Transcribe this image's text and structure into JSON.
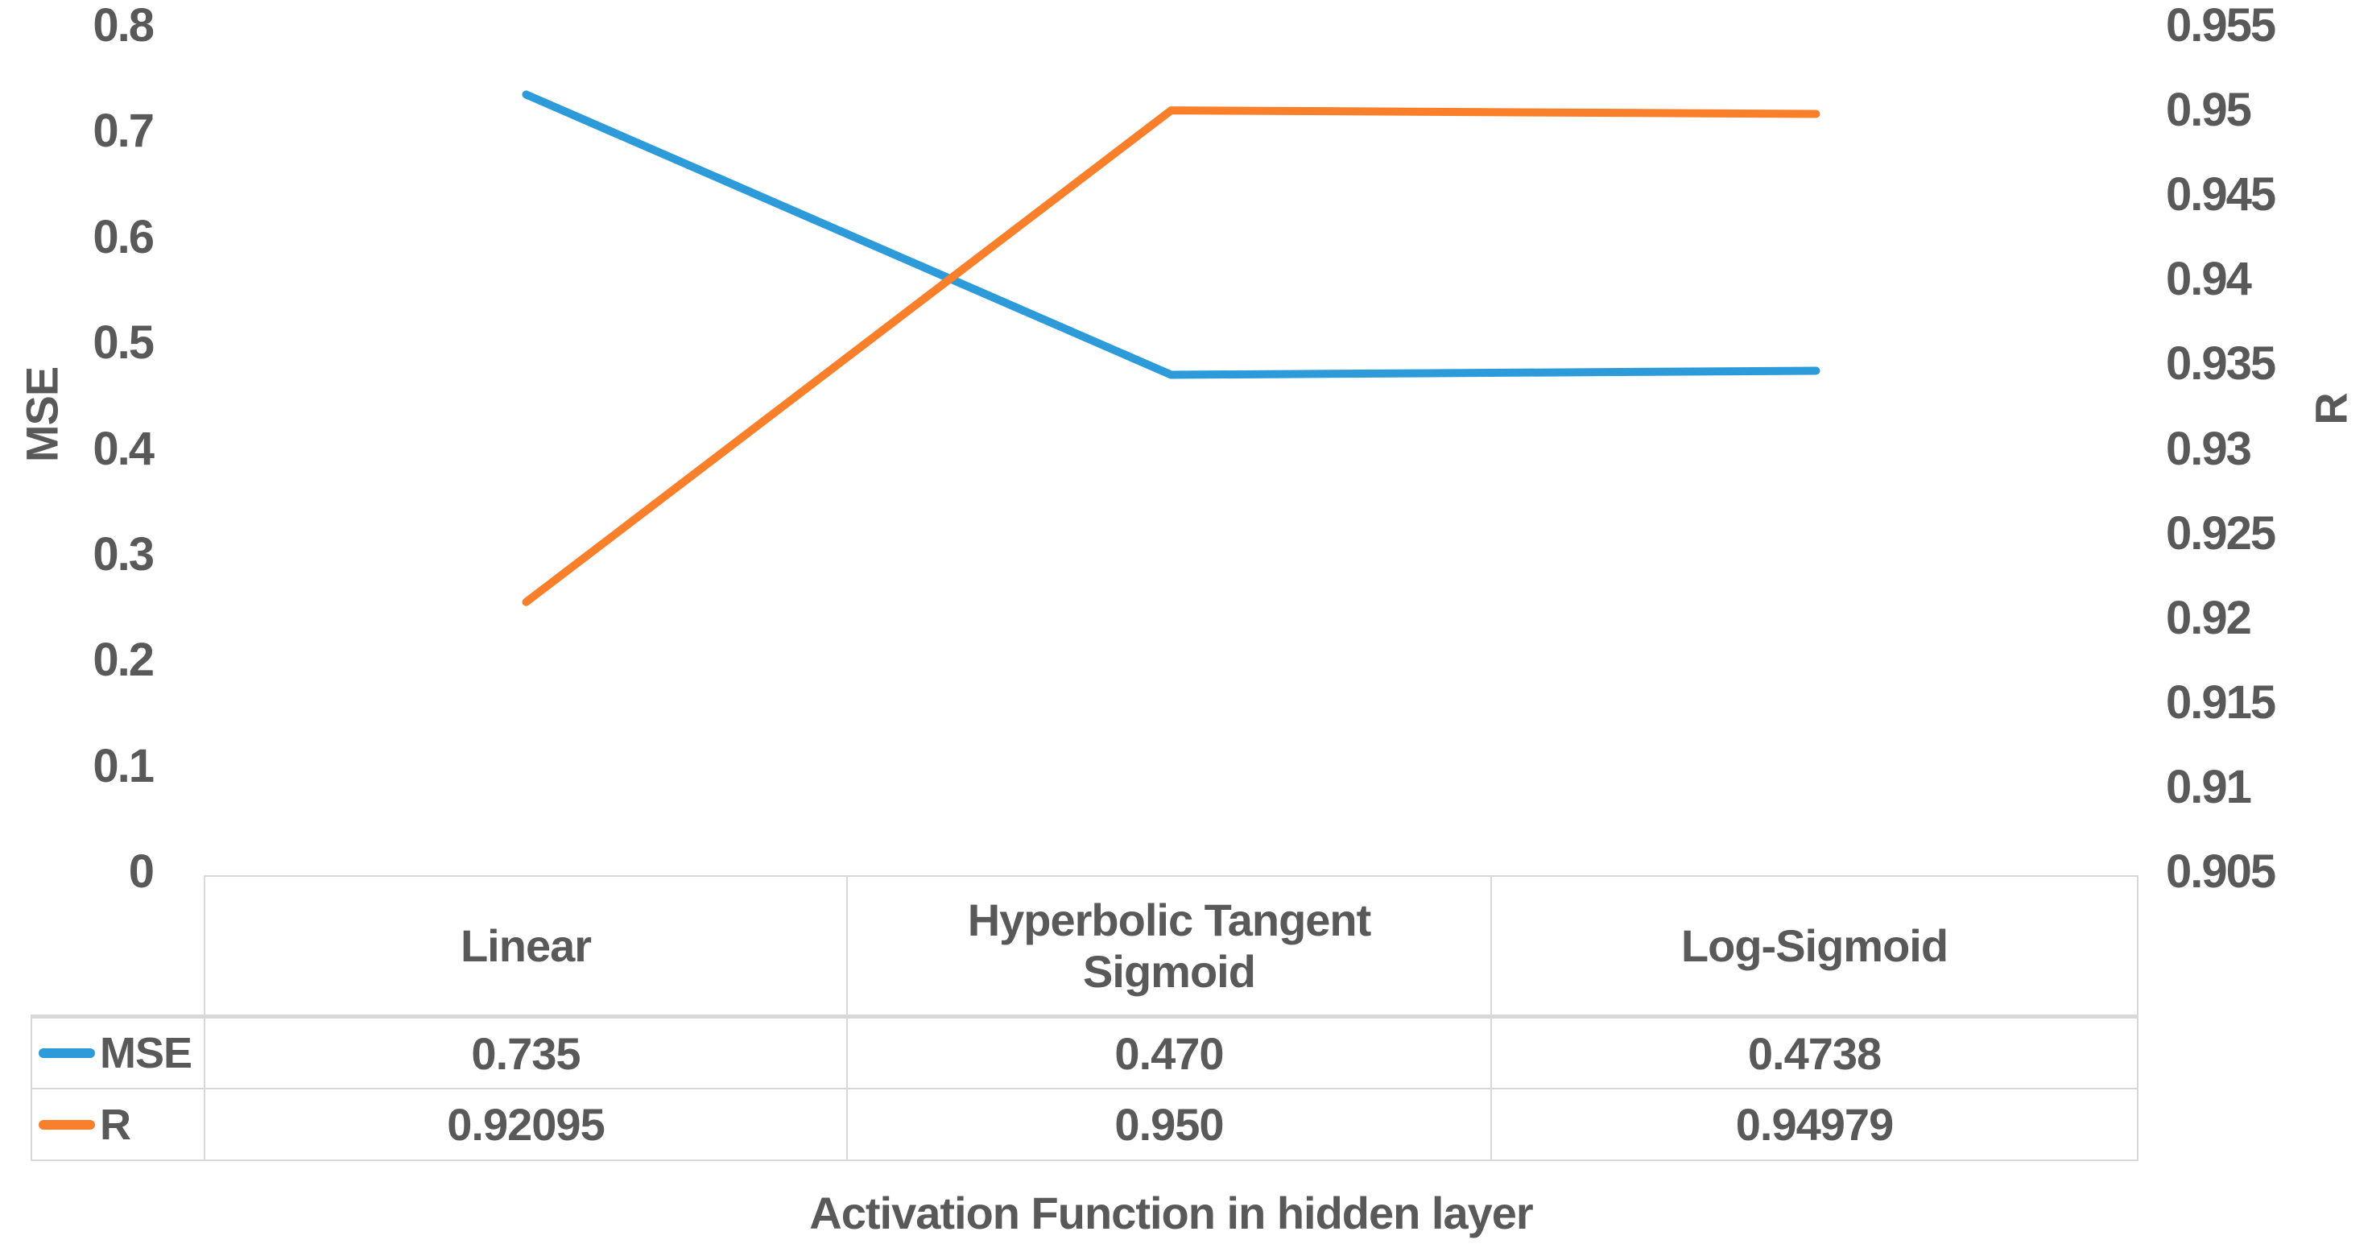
{
  "chart_data": {
    "type": "line",
    "title": "",
    "xlabel": "Activation Function in hidden layer",
    "grid": false,
    "legend_position": "table-left",
    "categories": [
      "Linear",
      "Hyperbolic Tangent Sigmoid",
      "Log-Sigmoid"
    ],
    "left_axis": {
      "title": "MSE",
      "min": 0,
      "max": 0.8,
      "ticks": [
        "0",
        "0.1",
        "0.2",
        "0.3",
        "0.4",
        "0.5",
        "0.6",
        "0.7",
        "0.8"
      ]
    },
    "right_axis": {
      "title": "R",
      "min": 0.905,
      "max": 0.955,
      "ticks": [
        "0.905",
        "0.91",
        "0.915",
        "0.92",
        "0.925",
        "0.93",
        "0.935",
        "0.94",
        "0.945",
        "0.95",
        "0.955"
      ]
    },
    "series": [
      {
        "name": "MSE",
        "axis": "left",
        "color": "#2d9bd9",
        "values": [
          0.735,
          0.47,
          0.4738
        ],
        "labels": [
          "0.735",
          "0.470",
          "0.4738"
        ]
      },
      {
        "name": "R",
        "axis": "right",
        "color": "#f97f2b",
        "values": [
          0.92095,
          0.95,
          0.94979
        ],
        "labels": [
          "0.92095",
          "0.950",
          "0.94979"
        ]
      }
    ],
    "colors": {
      "text": "#595959",
      "table_border": "#d8d8d8"
    }
  }
}
